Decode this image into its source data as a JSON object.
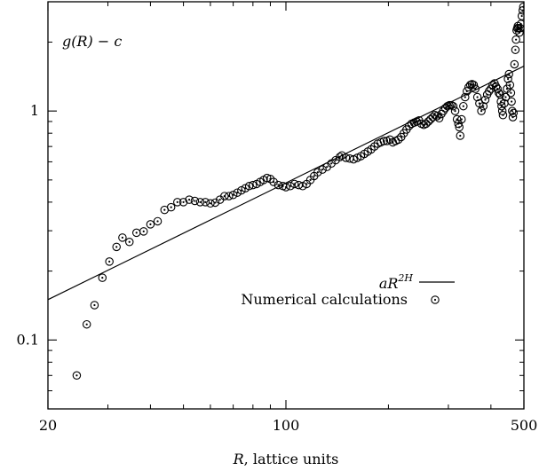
{
  "chart_data": {
    "type": "scatter",
    "title": "",
    "ylabel_inside": {
      "pre": "g(R) − ",
      "var": "c"
    },
    "xlabel": {
      "var": "R",
      "rest": ", lattice units"
    },
    "xscale": "log",
    "yscale": "log",
    "xlim": [
      20,
      500
    ],
    "ylim": [
      0.05,
      3.0
    ],
    "xticks": [
      20,
      100,
      500
    ],
    "xtick_labels": [
      "20",
      "100",
      "500"
    ],
    "yticks": [
      0.1,
      1
    ],
    "ytick_labels": [
      "0.1",
      "1"
    ],
    "grid": false,
    "legend": {
      "placement": "middle-right",
      "entries": [
        {
          "label": "aR^2H",
          "base": "aR",
          "sup": "2H",
          "marker": "line"
        },
        {
          "label": "Numerical calculations",
          "marker": "circle-dot"
        }
      ]
    },
    "series": [
      {
        "label": "aR^2H",
        "kind": "line",
        "points": [
          [
            20,
            0.15
          ],
          [
            500,
            1.57
          ]
        ]
      },
      {
        "label": "Numerical calculations",
        "kind": "scatter",
        "points": [
          [
            24.3,
            0.07
          ],
          [
            26.0,
            0.117
          ],
          [
            27.4,
            0.142
          ],
          [
            28.9,
            0.187
          ],
          [
            30.3,
            0.22
          ],
          [
            31.8,
            0.255
          ],
          [
            33.1,
            0.28
          ],
          [
            34.7,
            0.268
          ],
          [
            36.4,
            0.294
          ],
          [
            38.2,
            0.298
          ],
          [
            40.0,
            0.32
          ],
          [
            42.0,
            0.33
          ],
          [
            44.0,
            0.37
          ],
          [
            46.0,
            0.38
          ],
          [
            48.0,
            0.4
          ],
          [
            50.0,
            0.4
          ],
          [
            52.0,
            0.41
          ],
          [
            54.0,
            0.405
          ],
          [
            56.0,
            0.4
          ],
          [
            58.0,
            0.4
          ],
          [
            60.0,
            0.395
          ],
          [
            62.0,
            0.398
          ],
          [
            64.0,
            0.41
          ],
          [
            66.0,
            0.425
          ],
          [
            68.0,
            0.425
          ],
          [
            70.0,
            0.43
          ],
          [
            72.0,
            0.44
          ],
          [
            74.0,
            0.45
          ],
          [
            76.0,
            0.46
          ],
          [
            78.0,
            0.47
          ],
          [
            80.0,
            0.475
          ],
          [
            82.0,
            0.48
          ],
          [
            84.0,
            0.49
          ],
          [
            86.0,
            0.5
          ],
          [
            88.0,
            0.51
          ],
          [
            90.0,
            0.505
          ],
          [
            92.0,
            0.49
          ],
          [
            95.0,
            0.475
          ],
          [
            98.0,
            0.47
          ],
          [
            100.0,
            0.465
          ],
          [
            103.0,
            0.47
          ],
          [
            106.0,
            0.48
          ],
          [
            109.0,
            0.475
          ],
          [
            112.0,
            0.47
          ],
          [
            115.0,
            0.48
          ],
          [
            118.0,
            0.5
          ],
          [
            121.0,
            0.52
          ],
          [
            124.0,
            0.54
          ],
          [
            128.0,
            0.555
          ],
          [
            132.0,
            0.57
          ],
          [
            136.0,
            0.59
          ],
          [
            140.0,
            0.61
          ],
          [
            144.0,
            0.63
          ],
          [
            146.0,
            0.64
          ],
          [
            150.0,
            0.625
          ],
          [
            154.0,
            0.62
          ],
          [
            158.0,
            0.615
          ],
          [
            162.0,
            0.625
          ],
          [
            166.0,
            0.635
          ],
          [
            170.0,
            0.65
          ],
          [
            174.0,
            0.665
          ],
          [
            178.0,
            0.68
          ],
          [
            182.0,
            0.7
          ],
          [
            186.0,
            0.72
          ],
          [
            190.0,
            0.73
          ],
          [
            194.0,
            0.74
          ],
          [
            198.0,
            0.74
          ],
          [
            202.0,
            0.75
          ],
          [
            206.0,
            0.73
          ],
          [
            210.0,
            0.74
          ],
          [
            214.0,
            0.75
          ],
          [
            218.0,
            0.77
          ],
          [
            222.0,
            0.8
          ],
          [
            226.0,
            0.83
          ],
          [
            230.0,
            0.86
          ],
          [
            234.0,
            0.88
          ],
          [
            238.0,
            0.89
          ],
          [
            242.0,
            0.9
          ],
          [
            246.0,
            0.91
          ],
          [
            250.0,
            0.88
          ],
          [
            254.0,
            0.87
          ],
          [
            258.0,
            0.88
          ],
          [
            262.0,
            0.9
          ],
          [
            266.0,
            0.92
          ],
          [
            270.0,
            0.94
          ],
          [
            274.0,
            0.96
          ],
          [
            278.0,
            0.95
          ],
          [
            282.0,
            0.93
          ],
          [
            286.0,
            0.97
          ],
          [
            290.0,
            1.0
          ],
          [
            294.0,
            1.03
          ],
          [
            298.0,
            1.05
          ],
          [
            302.0,
            1.06
          ],
          [
            306.0,
            1.06
          ],
          [
            310.0,
            1.05
          ],
          [
            314.0,
            1.0
          ],
          [
            318.0,
            0.92
          ],
          [
            321.0,
            0.88
          ],
          [
            323.0,
            0.85
          ],
          [
            325.0,
            0.78
          ],
          [
            328.0,
            0.92
          ],
          [
            332.0,
            1.05
          ],
          [
            336.0,
            1.15
          ],
          [
            340.0,
            1.22
          ],
          [
            344.0,
            1.27
          ],
          [
            348.0,
            1.3
          ],
          [
            352.0,
            1.31
          ],
          [
            356.0,
            1.3
          ],
          [
            360.0,
            1.25
          ],
          [
            365.0,
            1.15
          ],
          [
            370.0,
            1.08
          ],
          [
            375.0,
            1.0
          ],
          [
            380.0,
            1.05
          ],
          [
            385.0,
            1.12
          ],
          [
            390.0,
            1.18
          ],
          [
            395.0,
            1.22
          ],
          [
            400.0,
            1.25
          ],
          [
            405.0,
            1.3
          ],
          [
            410.0,
            1.32
          ],
          [
            414.0,
            1.28
          ],
          [
            418.0,
            1.25
          ],
          [
            422.0,
            1.2
          ],
          [
            426.0,
            1.18
          ],
          [
            428.0,
            1.1
          ],
          [
            430.0,
            1.05
          ],
          [
            432.0,
            1.0
          ],
          [
            434.0,
            0.96
          ],
          [
            438.0,
            1.08
          ],
          [
            442.0,
            1.15
          ],
          [
            446.0,
            1.25
          ],
          [
            449.0,
            1.38
          ],
          [
            452.0,
            1.45
          ],
          [
            455.0,
            1.3
          ],
          [
            458.0,
            1.2
          ],
          [
            460.0,
            1.1
          ],
          [
            462.0,
            1.0
          ],
          [
            464.0,
            0.94
          ],
          [
            466.0,
            0.98
          ],
          [
            469.0,
            1.6
          ],
          [
            472.0,
            1.85
          ],
          [
            474.0,
            2.05
          ],
          [
            476.0,
            2.25
          ],
          [
            478.0,
            2.3
          ],
          [
            480.0,
            2.35
          ],
          [
            482.0,
            2.3
          ],
          [
            485.0,
            2.2
          ],
          [
            488.0,
            2.3
          ],
          [
            490.0,
            2.4
          ],
          [
            493.0,
            2.6
          ],
          [
            496.0,
            2.75
          ],
          [
            498.0,
            2.85
          ]
        ]
      }
    ]
  }
}
